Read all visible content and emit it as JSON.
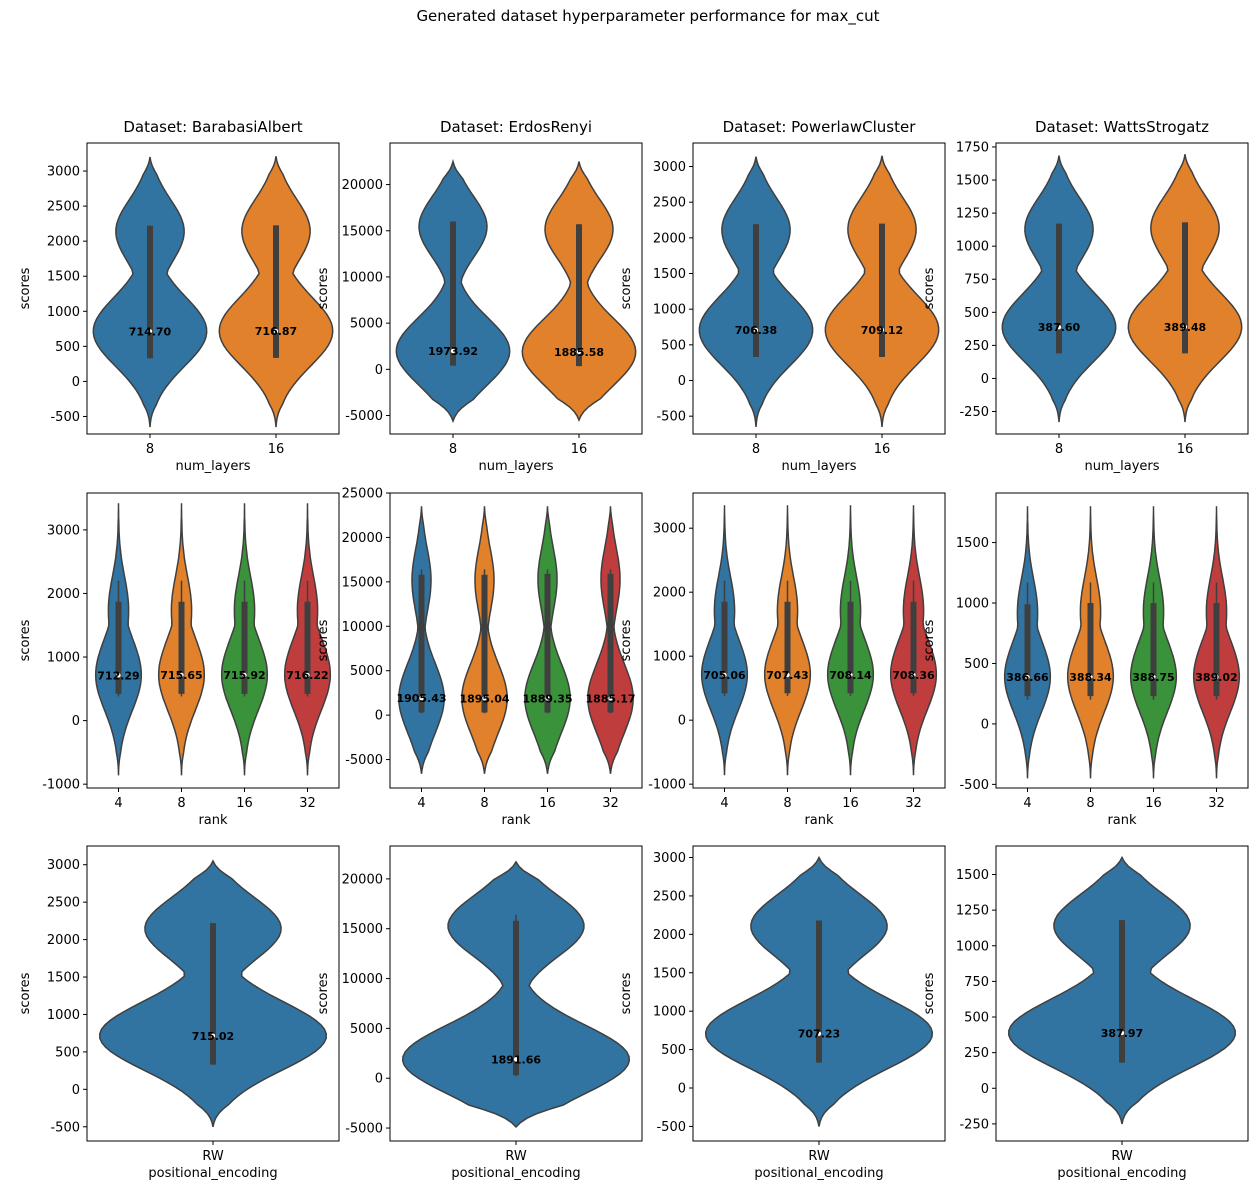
{
  "figure": {
    "suptitle": "Generated dataset hyperparameter performance for max_cut"
  },
  "colors": {
    "blue": "#3274a1",
    "orange": "#e1812c",
    "green": "#3a923a",
    "red": "#c03d3e",
    "edge": "#3f3f3f"
  },
  "chart_data": [
    {
      "type": "violin",
      "title": "Dataset: BarabasiAlbert",
      "xlabel": "num_layers",
      "ylabel": "scores",
      "ylim": [
        -750,
        3400
      ],
      "yticks": [
        -500,
        0,
        500,
        1000,
        1500,
        2000,
        2500,
        3000
      ],
      "categories": [
        "8",
        "16"
      ],
      "labels": [
        "714.70",
        "716.87"
      ],
      "medians": [
        714.7,
        716.87
      ],
      "box": [
        [
          330,
          2220
        ],
        [
          335,
          2225
        ]
      ],
      "extent": [
        [
          -650,
          3200
        ],
        [
          -650,
          3210
        ]
      ]
    },
    {
      "type": "violin",
      "title": "Dataset: ErdosRenyi",
      "xlabel": "num_layers",
      "ylabel": "scores",
      "ylim": [
        -7000,
        24500
      ],
      "yticks": [
        -5000,
        0,
        5000,
        10000,
        15000,
        20000
      ],
      "categories": [
        "8",
        "16"
      ],
      "labels": [
        "1973.92",
        "1885.58"
      ],
      "medians": [
        1973.92,
        1885.58
      ],
      "box": [
        [
          400,
          16000
        ],
        [
          350,
          15700
        ]
      ],
      "extent": [
        [
          -5600,
          22500
        ],
        [
          -5500,
          22500
        ]
      ]
    },
    {
      "type": "violin",
      "title": "Dataset: PowerlawCluster",
      "xlabel": "num_layers",
      "ylabel": "scores",
      "ylim": [
        -750,
        3330
      ],
      "yticks": [
        -500,
        0,
        500,
        1000,
        1500,
        2000,
        2500,
        3000
      ],
      "categories": [
        "8",
        "16"
      ],
      "labels": [
        "706.38",
        "709.12"
      ],
      "medians": [
        706.38,
        709.12
      ],
      "box": [
        [
          330,
          2190
        ],
        [
          330,
          2200
        ]
      ],
      "extent": [
        [
          -650,
          3140
        ],
        [
          -650,
          3150
        ]
      ]
    },
    {
      "type": "violin",
      "title": "Dataset: WattsStrogatz",
      "xlabel": "num_layers",
      "ylabel": "scores",
      "ylim": [
        -420,
        1780
      ],
      "yticks": [
        -250,
        0,
        250,
        500,
        750,
        1000,
        1250,
        1500,
        1750
      ],
      "categories": [
        "8",
        "16"
      ],
      "labels": [
        "387.60",
        "389.48"
      ],
      "medians": [
        387.6,
        389.48
      ],
      "box": [
        [
          190,
          1170
        ],
        [
          190,
          1180
        ]
      ],
      "extent": [
        [
          -330,
          1685
        ],
        [
          -330,
          1695
        ]
      ]
    },
    {
      "type": "violin",
      "xlabel": "rank",
      "ylabel": "scores",
      "ylim": [
        -1060,
        3580
      ],
      "yticks": [
        -1000,
        0,
        1000,
        2000,
        3000
      ],
      "categories": [
        "4",
        "8",
        "16",
        "32"
      ],
      "labels": [
        "712.29",
        "715.65",
        "715.92",
        "716.22"
      ],
      "medians": [
        712.29,
        715.65,
        715.92,
        716.22
      ],
      "box": [
        [
          420,
          1870
        ],
        [
          420,
          1870
        ],
        [
          420,
          1870
        ],
        [
          420,
          1870
        ]
      ],
      "whisker": [
        [
          380,
          2200
        ],
        [
          380,
          2200
        ],
        [
          380,
          2200
        ],
        [
          380,
          2200
        ]
      ],
      "extent": [
        [
          -860,
          3420
        ],
        [
          -860,
          3420
        ],
        [
          -860,
          3420
        ],
        [
          -860,
          3420
        ]
      ]
    },
    {
      "type": "violin",
      "xlabel": "rank",
      "ylabel": "scores",
      "ylim": [
        -8200,
        25000
      ],
      "yticks": [
        -5000,
        0,
        5000,
        10000,
        15000,
        20000,
        25000
      ],
      "categories": [
        "4",
        "8",
        "16",
        "32"
      ],
      "labels": [
        "1905.43",
        "1895.04",
        "1889.35",
        "1885.17"
      ],
      "medians": [
        1905.43,
        1895.04,
        1889.35,
        1885.17
      ],
      "box": [
        [
          300,
          15800
        ],
        [
          300,
          15800
        ],
        [
          300,
          15900
        ],
        [
          300,
          15900
        ]
      ],
      "whisker": [
        [
          200,
          16400
        ],
        [
          200,
          16400
        ],
        [
          200,
          16400
        ],
        [
          200,
          16400
        ]
      ],
      "extent": [
        [
          -6600,
          23500
        ],
        [
          -6600,
          23500
        ],
        [
          -6600,
          23500
        ],
        [
          -6600,
          23500
        ]
      ]
    },
    {
      "type": "violin",
      "xlabel": "rank",
      "ylabel": "scores",
      "ylim": [
        -1060,
        3550
      ],
      "yticks": [
        -1000,
        0,
        1000,
        2000,
        3000
      ],
      "categories": [
        "4",
        "8",
        "16",
        "32"
      ],
      "labels": [
        "705.06",
        "707.43",
        "708.14",
        "708.36"
      ],
      "medians": [
        705.06,
        707.43,
        708.14,
        708.36
      ],
      "box": [
        [
          420,
          1850
        ],
        [
          420,
          1850
        ],
        [
          420,
          1850
        ],
        [
          420,
          1850
        ]
      ],
      "whisker": [
        [
          380,
          2180
        ],
        [
          380,
          2180
        ],
        [
          380,
          2180
        ],
        [
          380,
          2180
        ]
      ],
      "extent": [
        [
          -860,
          3360
        ],
        [
          -860,
          3360
        ],
        [
          -860,
          3360
        ],
        [
          -860,
          3360
        ]
      ]
    },
    {
      "type": "violin",
      "xlabel": "rank",
      "ylabel": "scores",
      "ylim": [
        -530,
        1910
      ],
      "yticks": [
        -500,
        0,
        500,
        1000,
        1500
      ],
      "categories": [
        "4",
        "8",
        "16",
        "32"
      ],
      "labels": [
        "386.66",
        "388.34",
        "388.75",
        "389.02"
      ],
      "medians": [
        386.66,
        388.34,
        388.75,
        389.02
      ],
      "box": [
        [
          230,
          990
        ],
        [
          230,
          1000
        ],
        [
          230,
          1000
        ],
        [
          230,
          1000
        ]
      ],
      "whisker": [
        [
          200,
          1170
        ],
        [
          200,
          1170
        ],
        [
          200,
          1170
        ],
        [
          200,
          1170
        ]
      ],
      "extent": [
        [
          -450,
          1800
        ],
        [
          -450,
          1800
        ],
        [
          -450,
          1800
        ],
        [
          -450,
          1800
        ]
      ]
    },
    {
      "type": "violin",
      "xlabel": "positional_encoding",
      "ylabel": "scores",
      "ylim": [
        -690,
        3250
      ],
      "yticks": [
        -500,
        0,
        500,
        1000,
        1500,
        2000,
        2500,
        3000
      ],
      "categories": [
        "RW"
      ],
      "labels": [
        "715.02"
      ],
      "medians": [
        715.02
      ],
      "box": [
        [
          330,
          2220
        ]
      ],
      "extent": [
        [
          -500,
          3050
        ]
      ]
    },
    {
      "type": "violin",
      "xlabel": "positional_encoding",
      "ylabel": "scores",
      "ylim": [
        -6300,
        23300
      ],
      "yticks": [
        -5000,
        0,
        5000,
        10000,
        15000,
        20000
      ],
      "categories": [
        "RW"
      ],
      "labels": [
        "1891.66"
      ],
      "medians": [
        1891.66
      ],
      "box": [
        [
          300,
          15800
        ]
      ],
      "whisker": [
        [
          200,
          16400
        ]
      ],
      "extent": [
        [
          -4900,
          21700
        ]
      ]
    },
    {
      "type": "violin",
      "xlabel": "positional_encoding",
      "ylabel": "scores",
      "ylim": [
        -690,
        3150
      ],
      "yticks": [
        -500,
        0,
        500,
        1000,
        1500,
        2000,
        2500,
        3000
      ],
      "categories": [
        "RW"
      ],
      "labels": [
        "707.23"
      ],
      "medians": [
        707.23
      ],
      "box": [
        [
          330,
          2180
        ]
      ],
      "extent": [
        [
          -500,
          3000
        ]
      ]
    },
    {
      "type": "violin",
      "xlabel": "positional_encoding",
      "ylabel": "scores",
      "ylim": [
        -370,
        1700
      ],
      "yticks": [
        -250,
        0,
        250,
        500,
        750,
        1000,
        1250,
        1500
      ],
      "categories": [
        "RW"
      ],
      "labels": [
        "387.97"
      ],
      "medians": [
        387.97
      ],
      "box": [
        [
          180,
          1180
        ]
      ],
      "extent": [
        [
          -250,
          1620
        ]
      ]
    }
  ]
}
